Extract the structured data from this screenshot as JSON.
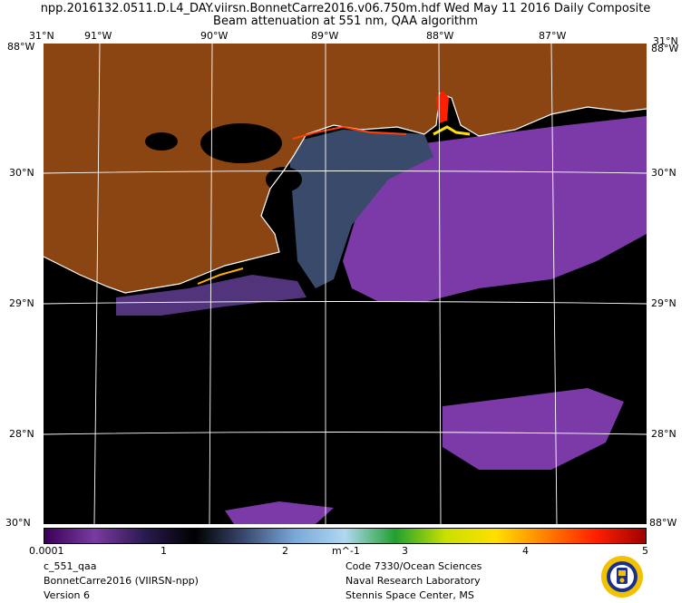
{
  "header": {
    "line1": "npp.2016132.0511.D.L4_DAY.viirsn.BonnetCarre2016.v06.750m.hdf  Wed May 11 2016 Daily Composite",
    "line2": "Beam attenuation at 551 nm, QAA algorithm"
  },
  "map": {
    "lon_labels": [
      "91°W",
      "90°W",
      "89°W",
      "88°W",
      "87°W"
    ],
    "lat_labels": [
      "31°N",
      "30°N",
      "29°N",
      "28°N"
    ],
    "bottom_corner_labels": [
      "30°N",
      "88°W"
    ],
    "corner_tl": "31°N",
    "corner_tr": "31°N",
    "corner_w": "88°W",
    "colors": {
      "land": "#8b4513",
      "nodata": "#000000",
      "coast": "#ffffff"
    }
  },
  "colorbar": {
    "tick_labels": [
      "0.0001",
      "1",
      "2",
      "3",
      "4",
      "5"
    ],
    "unit": "m^-1",
    "stops": [
      "#3a0058",
      "#7a3aa0",
      "#2a1a50",
      "#000000",
      "#3a4a70",
      "#7aa8d8",
      "#b0d8f0",
      "#20a030",
      "#c8e000",
      "#ffe000",
      "#ff8000",
      "#ff2000",
      "#a00000"
    ]
  },
  "footer": {
    "left": [
      "c_551_qaa",
      "BonnetCarre2016 (VIIRSN-npp)",
      "Version 6"
    ],
    "right": [
      "Code 7330/Ocean Sciences",
      "Naval Research Laboratory",
      "Stennis Space Center, MS"
    ]
  }
}
